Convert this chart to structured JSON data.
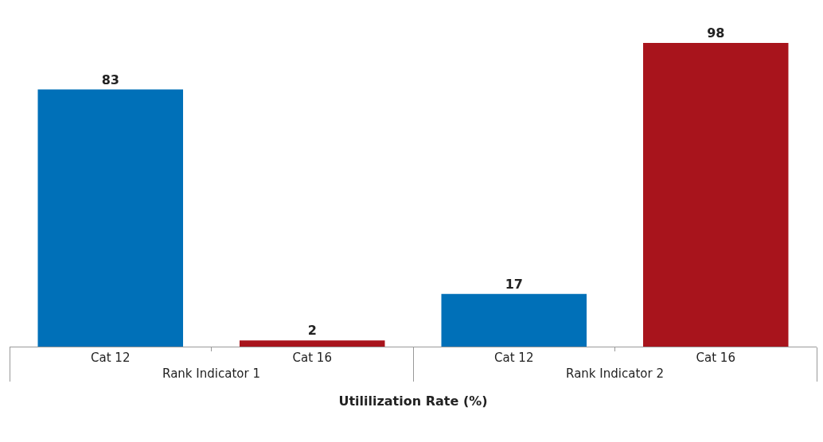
{
  "chart_data": {
    "type": "bar",
    "xlabel": "Utililization Rate (%)",
    "categories": [
      "Cat 12",
      "Cat 16",
      "Cat 12",
      "Cat 16"
    ],
    "values": [
      83,
      2,
      17,
      98
    ],
    "colors": [
      "#0070b8",
      "#a8141c",
      "#0070b8",
      "#a8141c"
    ],
    "data_labels": true,
    "tick_labels": "x",
    "annotations": [
      "Rank Indicator 1",
      "Rank Indicator 2"
    ]
  }
}
